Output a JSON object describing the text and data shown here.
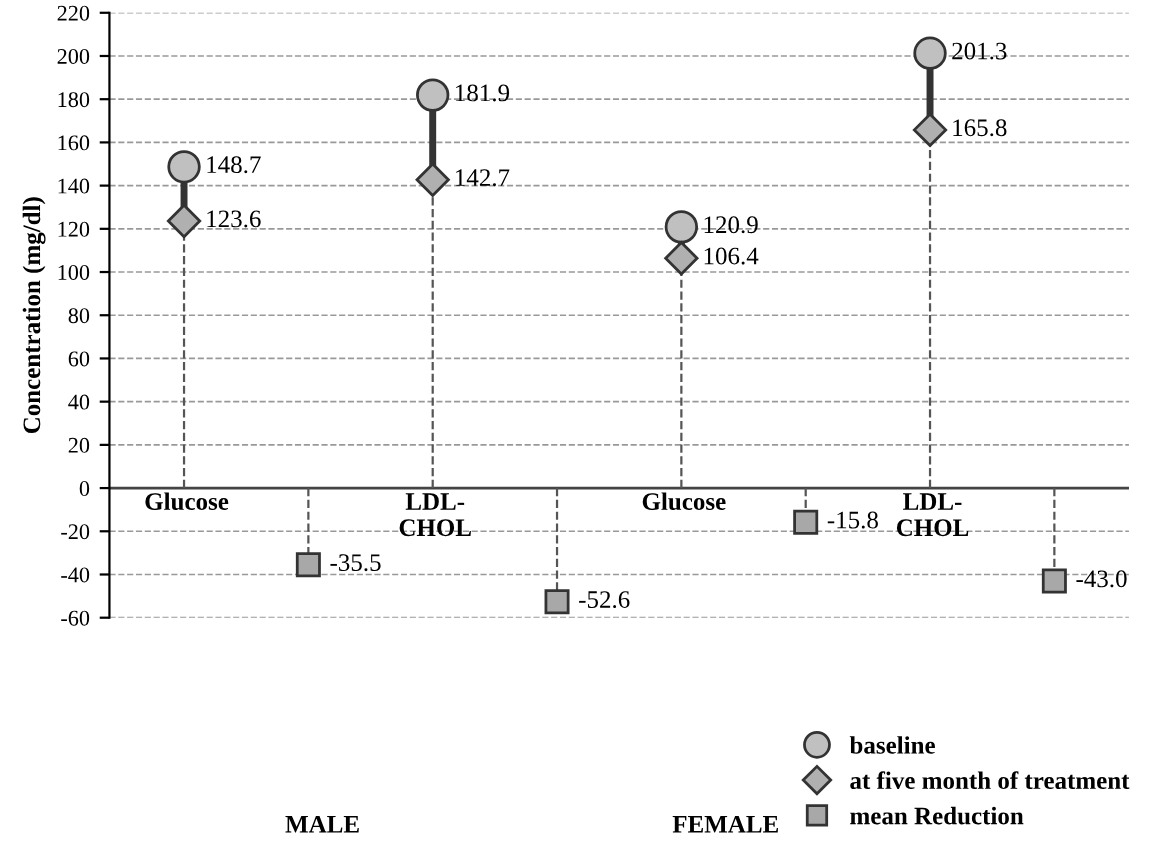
{
  "chart_data": {
    "type": "lollipop",
    "ylabel": "Concentration (mg/dl)",
    "categories": [
      "Glucose",
      null,
      "LDL-\nCHOL",
      null,
      "Glucose",
      null,
      "LDL-\nCHOL",
      null
    ],
    "series": [
      {
        "name": "baseline",
        "color": "#c0c0c0",
        "marker": "circle",
        "values": [
          148.7,
          null,
          181.9,
          null,
          120.9,
          null,
          201.3,
          null
        ],
        "value_labels": [
          "148.7",
          null,
          "181.9",
          null,
          "120.9",
          null,
          "201.3",
          null
        ]
      },
      {
        "name": "at five month of treatment",
        "color": "#b0b0b0",
        "marker": "diamond",
        "values": [
          123.6,
          null,
          142.7,
          null,
          106.4,
          null,
          165.8,
          null
        ],
        "value_labels": [
          "123.6",
          null,
          "142.7",
          null,
          "106.4",
          null,
          "165.8",
          null
        ]
      },
      {
        "name": "mean Reduction",
        "color": "#a8a8a8",
        "marker": "square",
        "values": [
          null,
          -35.5,
          null,
          -52.6,
          null,
          -15.8,
          null,
          -43.0
        ],
        "value_labels": [
          null,
          "-35.5",
          null,
          "-52.6",
          null,
          "-15.8",
          null,
          "-43.0"
        ]
      }
    ],
    "ylim": [
      -60,
      220
    ],
    "yticks": [
      -60,
      -40,
      -20,
      0,
      20,
      40,
      60,
      80,
      100,
      120,
      140,
      160,
      180,
      200,
      220
    ],
    "grid": "y",
    "line_style": "dashed",
    "legend": "bottom right",
    "annotations": [
      "MALE",
      "FEMALE"
    ]
  }
}
